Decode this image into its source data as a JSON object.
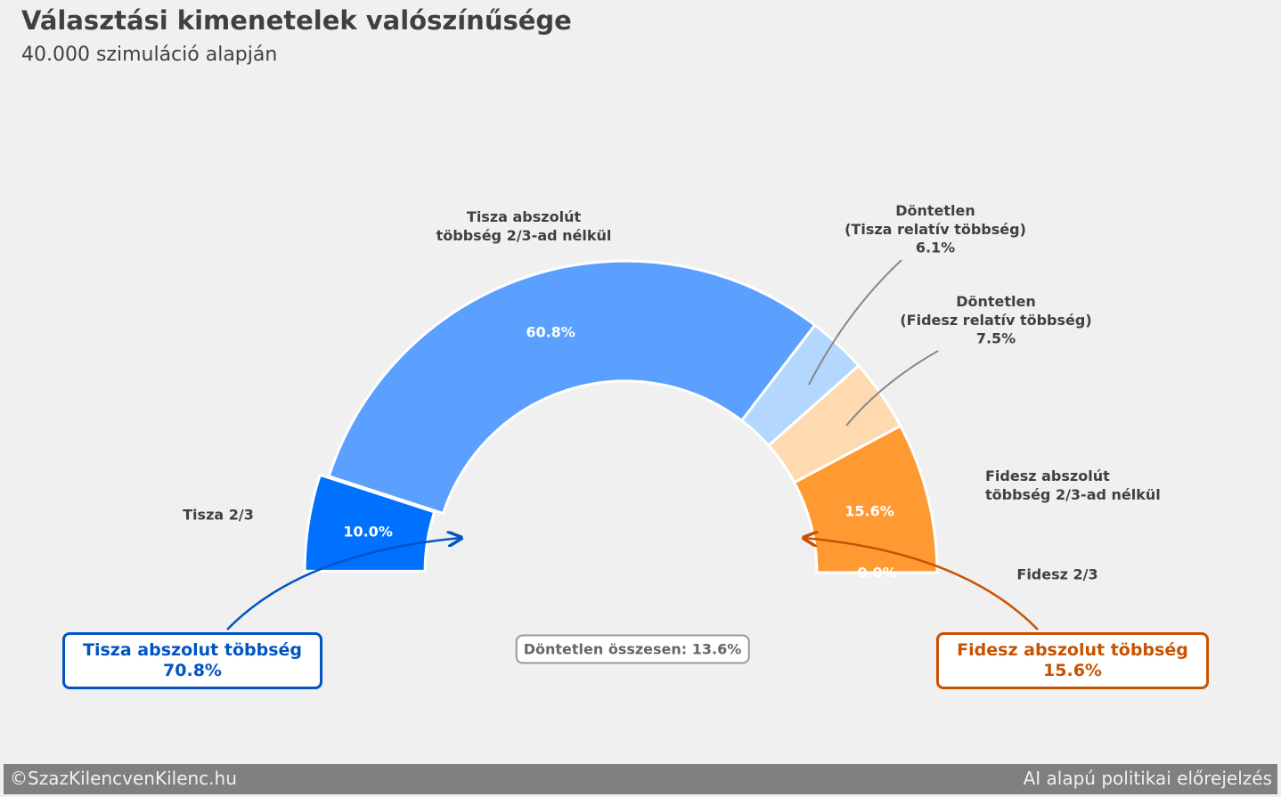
{
  "chart_data": {
    "type": "donut",
    "title": "Választási kimenetelek valószínűsége",
    "subtitle": "40.000 szimuláció alapján",
    "categories": [
      "Tisza 2/3",
      "Tisza abszolút\ntöbbség 2/3-ad nélkül",
      "Döntetlen\n(Tisza relatív többség)",
      "Döntetlen\n(Fidesz relatív többség)",
      "Fidesz abszolút\ntöbbség 2/3-ad nélkül",
      "Fidesz 2/3"
    ],
    "values": [
      10.0,
      60.8,
      6.1,
      7.5,
      15.6,
      0.0
    ],
    "value_labels": [
      "10.0%",
      "60.8%",
      "6.1%",
      "7.5%",
      "15.6%",
      "0.0%"
    ],
    "colors": [
      "#0070ff",
      "#5ca0ff",
      "#b3d7ff",
      "#ffdab0",
      "#ff9a33",
      "#d9600a"
    ],
    "annotations": [
      "Tisza abszolut többség\n70.8%",
      "Döntetlen összesen: 13.6%",
      "Fidesz abszolut többség\n15.6%"
    ]
  },
  "footer": {
    "left": "©SzazKilencvenKilenc.hu",
    "right": "AI alapú politikai előrejelzés"
  }
}
